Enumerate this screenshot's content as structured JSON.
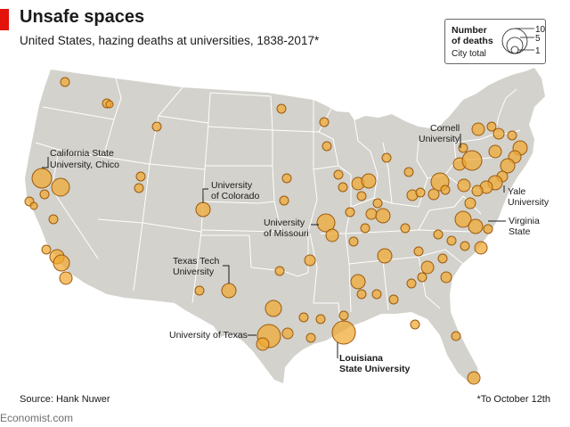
{
  "header": {
    "title": "Unsafe spaces",
    "subtitle": "United States, hazing deaths at universities, 1838-2017*"
  },
  "legend": {
    "title": "Number of deaths",
    "subtitle": "City total",
    "sizes": [
      "10",
      "5",
      "1"
    ]
  },
  "labels": {
    "california": [
      "California State",
      "University, Chico"
    ],
    "colorado": [
      "University",
      "of Colorado"
    ],
    "missouri": [
      "University",
      "of Missouri"
    ],
    "texas_tech": [
      "Texas Tech",
      "University"
    ],
    "texas": "University of Texas",
    "lsu": [
      "Louisiana",
      "State University"
    ],
    "cornell": [
      "Cornell",
      "University"
    ],
    "yale": [
      "Yale",
      "University"
    ],
    "virginia": [
      "Virginia",
      "State"
    ]
  },
  "footer": {
    "source": "Source: Hank Nuwer",
    "note": "*To October 12th",
    "brand": "Economist.com"
  },
  "colors": {
    "land": "#d3d2cc",
    "border": "#ffffff",
    "bubble_fill": "#f0a830",
    "bubble_stroke": "#9c5a0f",
    "accent": "#e3120b"
  }
}
